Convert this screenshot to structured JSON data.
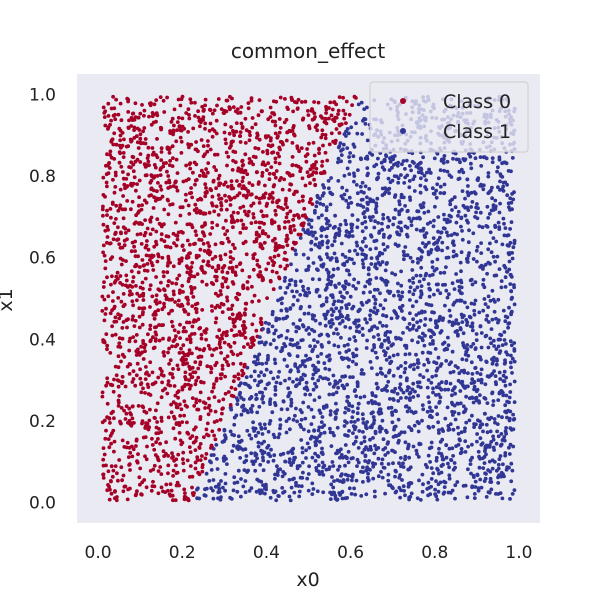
{
  "chart_data": {
    "type": "scatter",
    "title": "common_effect",
    "xlabel": "x0",
    "ylabel": "x1",
    "xlim": [
      -0.05,
      1.05
    ],
    "ylim": [
      -0.05,
      1.05
    ],
    "x_ticks": [
      0.0,
      0.2,
      0.4,
      0.6,
      0.8,
      1.0
    ],
    "y_ticks": [
      0.0,
      0.2,
      0.4,
      0.6,
      0.8,
      1.0
    ],
    "x_tick_labels": [
      "0.0",
      "0.2",
      "0.4",
      "0.6",
      "0.8",
      "1.0"
    ],
    "y_tick_labels": [
      "0.0",
      "0.2",
      "0.4",
      "0.6",
      "0.8",
      "1.0"
    ],
    "grid": false,
    "legend_position": "top-right",
    "background_color": "#eaeaf2",
    "series": [
      {
        "name": "Class 0",
        "color": "#a50026",
        "region": "x0 < 0.22 + 0.4 * x1",
        "points": [
          [
            0.02,
            0.01
          ],
          [
            0.05,
            0.12
          ],
          [
            0.08,
            0.25
          ],
          [
            0.12,
            0.4
          ],
          [
            0.03,
            0.55
          ],
          [
            0.1,
            0.7
          ],
          [
            0.06,
            0.85
          ],
          [
            0.15,
            0.98
          ],
          [
            0.25,
            0.9
          ],
          [
            0.35,
            0.96
          ],
          [
            0.45,
            0.92
          ],
          [
            0.55,
            0.97
          ],
          [
            0.6,
            0.95
          ],
          [
            0.2,
            0.3
          ],
          [
            0.28,
            0.6
          ],
          [
            0.38,
            0.75
          ],
          [
            0.18,
            0.08
          ],
          [
            0.3,
            0.5
          ],
          [
            0.42,
            0.8
          ],
          [
            0.5,
            0.85
          ]
        ]
      },
      {
        "name": "Class 1",
        "color": "#313695",
        "region": "x0 >= 0.22 + 0.4 * x1",
        "points": [
          [
            0.25,
            0.02
          ],
          [
            0.4,
            0.1
          ],
          [
            0.6,
            0.05
          ],
          [
            0.8,
            0.15
          ],
          [
            0.95,
            0.02
          ],
          [
            0.35,
            0.3
          ],
          [
            0.55,
            0.4
          ],
          [
            0.75,
            0.35
          ],
          [
            0.98,
            0.5
          ],
          [
            0.5,
            0.6
          ],
          [
            0.7,
            0.7
          ],
          [
            0.9,
            0.8
          ],
          [
            0.65,
            0.9
          ],
          [
            0.85,
            0.95
          ],
          [
            0.99,
            0.99
          ],
          [
            0.45,
            0.2
          ],
          [
            0.88,
            0.6
          ],
          [
            0.62,
            0.25
          ],
          [
            0.78,
            0.55
          ],
          [
            0.95,
            0.3
          ]
        ]
      }
    ],
    "sample_count_per_class_estimate": 2500
  }
}
